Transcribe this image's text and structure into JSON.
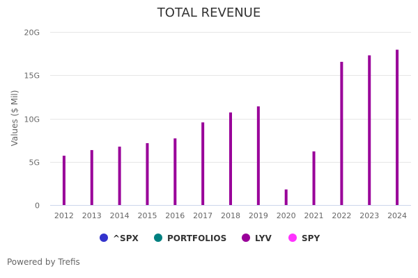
{
  "chart_data": {
    "type": "bar",
    "title": "TOTAL REVENUE",
    "xlabel": "",
    "ylabel": "Values ($ Mil)",
    "ylim": [
      0,
      20
    ],
    "y_unit_suffix": "G",
    "y_ticks": [
      {
        "value": 0,
        "label": "0"
      },
      {
        "value": 5,
        "label": "5G"
      },
      {
        "value": 10,
        "label": "10G"
      },
      {
        "value": 15,
        "label": "15G"
      },
      {
        "value": 20,
        "label": "20G"
      }
    ],
    "grid": true,
    "categories": [
      "2012",
      "2013",
      "2014",
      "2015",
      "2016",
      "2017",
      "2018",
      "2019",
      "2020",
      "2021",
      "2022",
      "2023",
      "2024"
    ],
    "series": [
      {
        "name": "LYV",
        "color": "#990099",
        "values": [
          5.7,
          6.35,
          6.75,
          7.15,
          7.7,
          9.55,
          10.7,
          11.4,
          1.8,
          6.2,
          16.55,
          17.3,
          17.95
        ]
      }
    ],
    "legend": {
      "placement": "bottom",
      "items": [
        {
          "label": "^SPX",
          "color": "#3333cc"
        },
        {
          "label": "PORTFOLIOS",
          "color": "#008080"
        },
        {
          "label": "LYV",
          "color": "#990099"
        },
        {
          "label": "SPY",
          "color": "#ff33ff"
        }
      ]
    }
  },
  "footer": {
    "text": "Powered by Trefis"
  }
}
